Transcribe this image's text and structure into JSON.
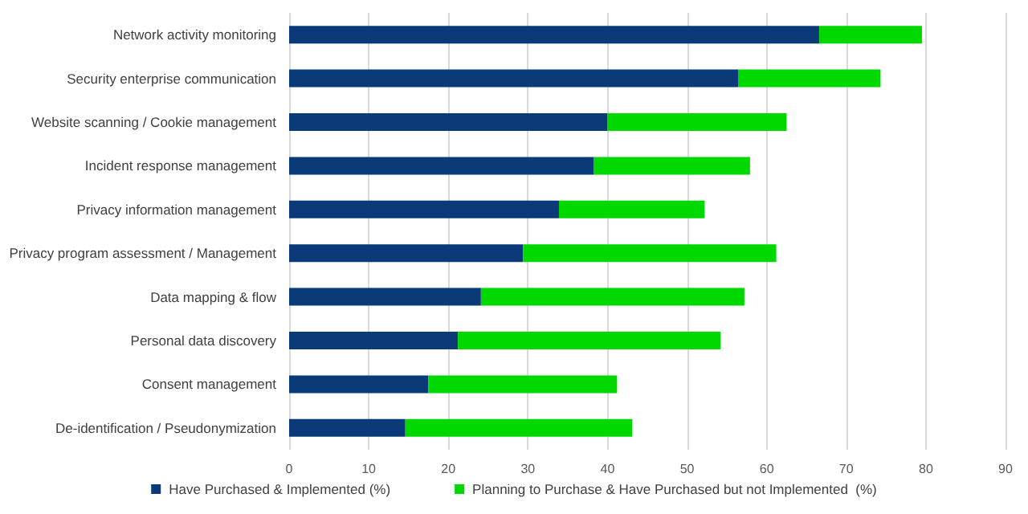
{
  "chart_data": {
    "type": "bar",
    "orientation": "horizontal",
    "stacked": true,
    "categories": [
      "Network activity monitoring",
      "Security enterprise communication",
      "Website scanning / Cookie management",
      "Incident response management",
      "Privacy information management",
      "Privacy program assessment / Management",
      "Data mapping & flow",
      "Personal data discovery",
      "Consent management",
      "De-identification / Pseudonymization"
    ],
    "series": [
      {
        "name": "Have Purchased & Implemented (%)",
        "color": "#0b3a78",
        "values": [
          66.6,
          56.4,
          40.0,
          38.3,
          33.9,
          29.4,
          24.1,
          21.2,
          17.5,
          14.6
        ]
      },
      {
        "name": "Planning to Purchase & Have Purchased but not Implemented  (%)",
        "color": "#00d800",
        "values": [
          12.9,
          17.9,
          22.5,
          19.6,
          18.3,
          31.8,
          33.1,
          33.0,
          23.7,
          28.5
        ]
      }
    ],
    "xlim": [
      0,
      90
    ],
    "xticks": [
      0,
      10,
      20,
      30,
      40,
      50,
      60,
      70,
      80,
      90
    ],
    "grid": "x",
    "legend": "bottom"
  }
}
